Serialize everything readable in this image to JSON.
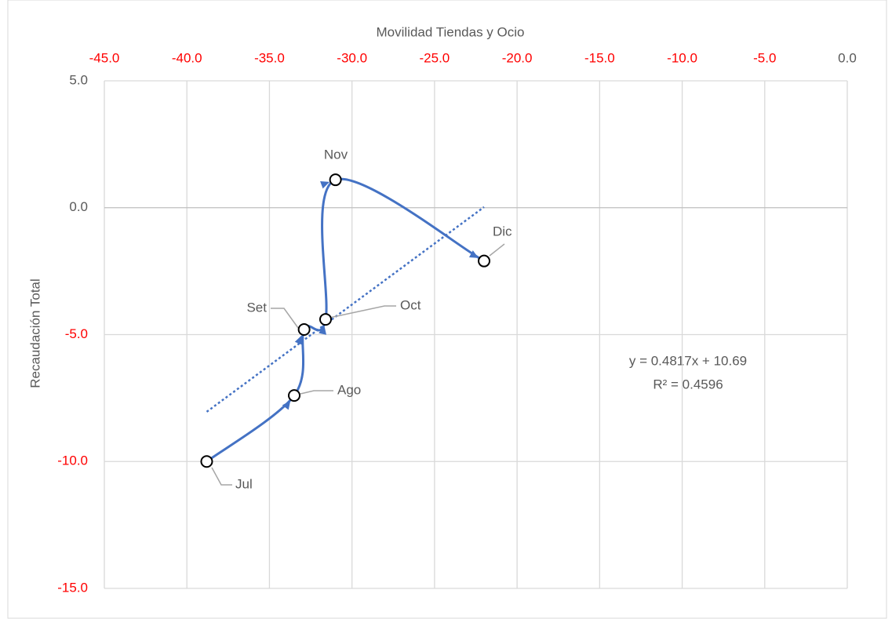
{
  "chart_data": {
    "type": "scatter",
    "x_label": "Movilidad Tiendas y Ocio",
    "y_label": "Recaudación Total",
    "x": [
      -38.8,
      -33.5,
      -32.9,
      -31.6,
      -31.0,
      -22.0
    ],
    "values": [
      -10.0,
      -7.4,
      -4.8,
      -4.4,
      1.1,
      -2.1
    ],
    "point_labels": [
      "Jul",
      "Ago",
      "Set",
      "Oct",
      "Nov",
      "Dic"
    ],
    "color": "#4472c4",
    "xlim": [
      -45,
      0
    ],
    "ylim": [
      -15,
      5
    ],
    "xticks": [
      {
        "value": -45,
        "label": "-45.0"
      },
      {
        "value": -40,
        "label": "-40.0"
      },
      {
        "value": -35,
        "label": "-35.0"
      },
      {
        "value": -30,
        "label": "-30.0"
      },
      {
        "value": -25,
        "label": "-25.0"
      },
      {
        "value": -20,
        "label": "-20.0"
      },
      {
        "value": -15,
        "label": "-15.0"
      },
      {
        "value": -10,
        "label": "-10.0"
      },
      {
        "value": -5,
        "label": "-5.0"
      },
      {
        "value": 0,
        "label": "0.0"
      }
    ],
    "yticks": [
      {
        "value": 5,
        "label": "5.0"
      },
      {
        "value": 0,
        "label": "0.0"
      },
      {
        "value": -5,
        "label": "-5.0"
      },
      {
        "value": -10,
        "label": "-10.0"
      },
      {
        "value": -15,
        "label": "-15.0"
      }
    ],
    "grid": true,
    "negative_tick_color": "#ff0000",
    "trendline": {
      "type": "linear",
      "style": "dotted",
      "equation": "y = 0.4817x + 10.69",
      "r_squared": "R² = 0.4596"
    }
  }
}
